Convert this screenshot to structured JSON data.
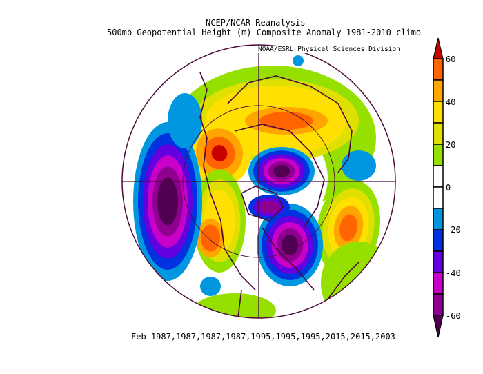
{
  "title": "NCEP/NCAR Reanalysis",
  "subtitle": "500mb Geopotential Height (m) Composite Anomaly 1981-2010 climo",
  "credit": "NOAA/ESRL Physical Sciences Division",
  "footer": "Feb 1987,1987,1987,1987,1995,1995,1995,2015,2015,2003",
  "projection": "north-polar-stereographic",
  "colorbar": {
    "labels": [
      "60",
      "40",
      "20",
      "0",
      "-20",
      "-40",
      "-60"
    ],
    "levels": [
      -60,
      -50,
      -40,
      -30,
      -20,
      -10,
      0,
      10,
      20,
      30,
      40,
      50,
      60
    ],
    "colors": [
      "#500050",
      "#900090",
      "#c800c8",
      "#6400e0",
      "#0032e0",
      "#0096e0",
      "#ffffff",
      "#ffffff",
      "#96e000",
      "#e0e000",
      "#ffe000",
      "#ffa500",
      "#ff6400",
      "#c80000"
    ]
  }
}
